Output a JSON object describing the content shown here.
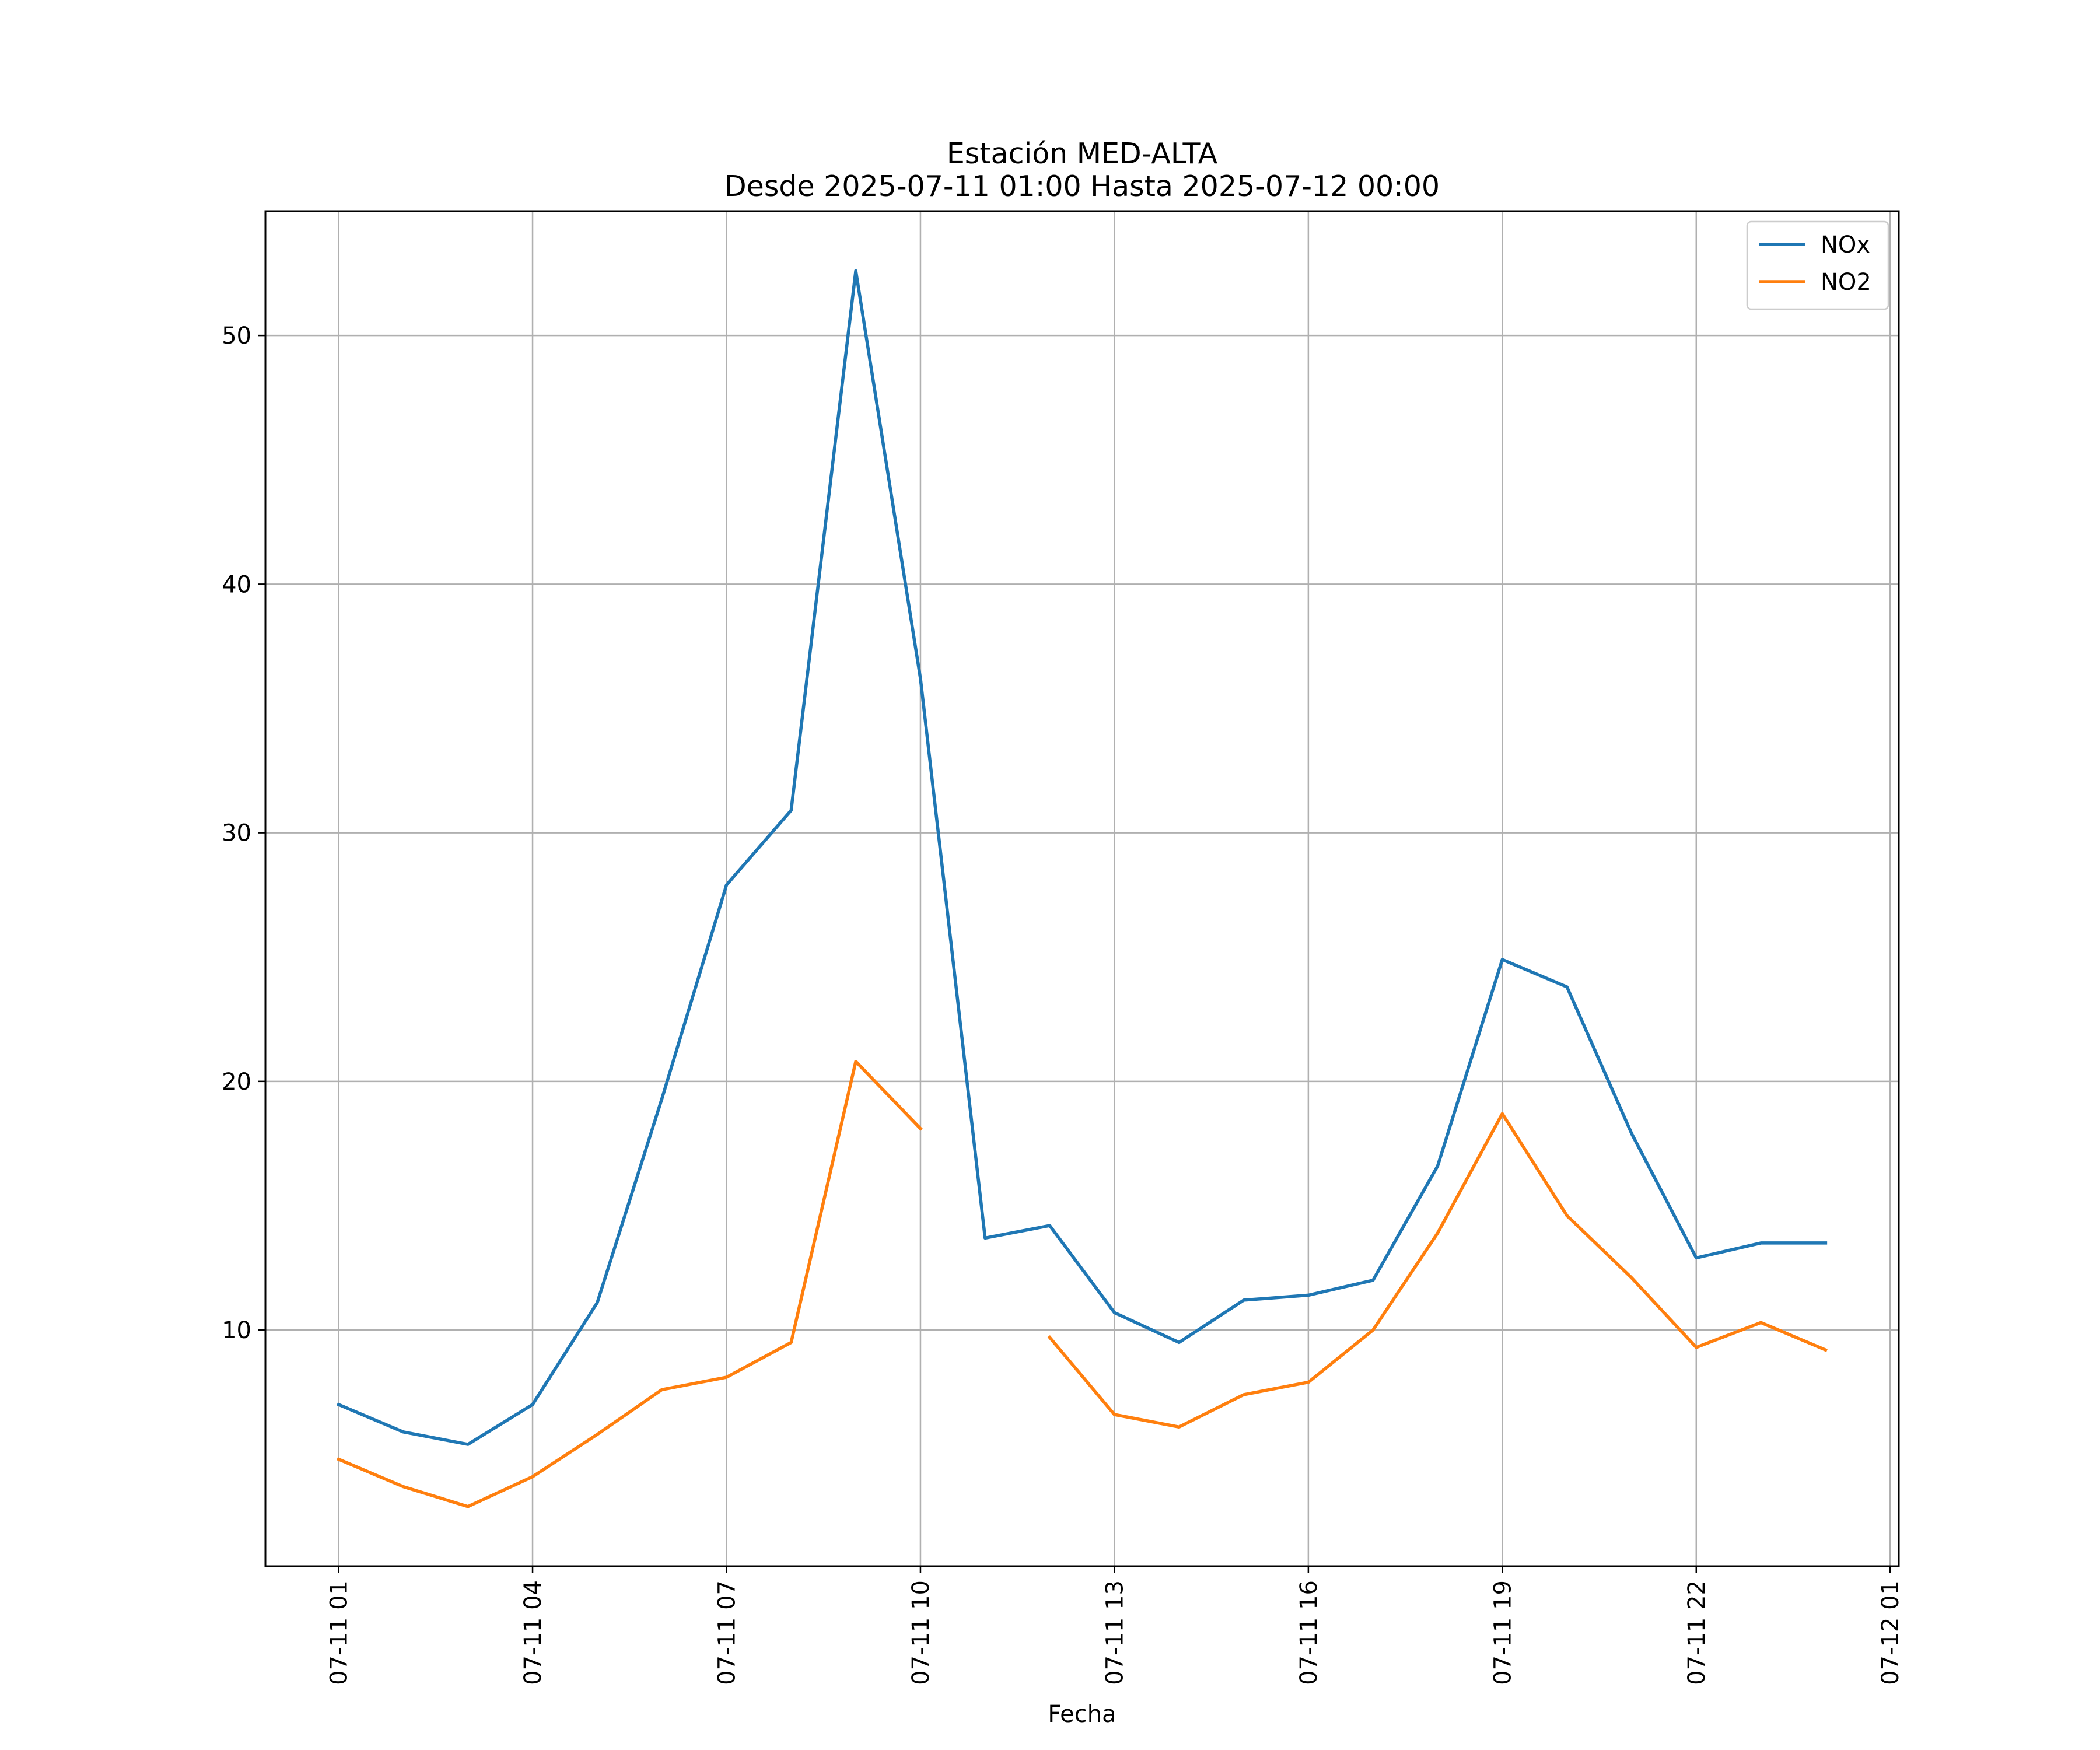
{
  "chart_data": {
    "type": "line",
    "title": "Estación MED-ALTA",
    "subtitle": "Desde 2025-07-11 01:00 Hasta 2025-07-12 00:00",
    "xlabel": "Fecha",
    "ylabel": "",
    "x": [
      "2025-07-11 01:00",
      "2025-07-11 02:00",
      "2025-07-11 03:00",
      "2025-07-11 04:00",
      "2025-07-11 05:00",
      "2025-07-11 06:00",
      "2025-07-11 07:00",
      "2025-07-11 08:00",
      "2025-07-11 09:00",
      "2025-07-11 10:00",
      "2025-07-11 11:00",
      "2025-07-11 12:00",
      "2025-07-11 13:00",
      "2025-07-11 14:00",
      "2025-07-11 15:00",
      "2025-07-11 16:00",
      "2025-07-11 17:00",
      "2025-07-11 18:00",
      "2025-07-11 19:00",
      "2025-07-11 20:00",
      "2025-07-11 21:00",
      "2025-07-11 22:00",
      "2025-07-11 23:00",
      "2025-07-12 00:00"
    ],
    "x_tick_labels": [
      "07-11 01",
      "07-11 04",
      "07-11 07",
      "07-11 10",
      "07-11 13",
      "07-11 16",
      "07-11 19",
      "07-11 22",
      "07-12 01"
    ],
    "x_tick_values": [
      "2025-07-11 01:00",
      "2025-07-11 04:00",
      "2025-07-11 07:00",
      "2025-07-11 10:00",
      "2025-07-11 13:00",
      "2025-07-11 16:00",
      "2025-07-11 19:00",
      "2025-07-11 22:00",
      "2025-07-12 01:00"
    ],
    "xlim": [
      "2025-07-10 23:52",
      "2025-07-12 01:08"
    ],
    "y_ticks": [
      10,
      20,
      30,
      40,
      50
    ],
    "ylim": [
      0.5,
      55.0
    ],
    "grid": true,
    "legend": "top-right",
    "series": [
      {
        "name": "NOx",
        "color": "#1f77b4",
        "values": [
          7.0,
          5.9,
          5.4,
          7.0,
          11.1,
          19.3,
          27.9,
          30.9,
          52.6,
          36.2,
          13.7,
          14.2,
          10.7,
          9.5,
          11.2,
          11.4,
          12.0,
          16.6,
          24.9,
          23.8,
          17.9,
          12.9,
          13.5,
          13.5
        ]
      },
      {
        "name": "NO2",
        "color": "#ff7f0e",
        "values": [
          4.8,
          3.7,
          2.9,
          4.1,
          5.8,
          7.6,
          8.1,
          9.5,
          20.8,
          18.1,
          null,
          9.7,
          6.6,
          6.1,
          7.4,
          7.9,
          10.0,
          13.9,
          18.7,
          14.6,
          12.1,
          9.3,
          10.3,
          9.2
        ]
      }
    ]
  }
}
